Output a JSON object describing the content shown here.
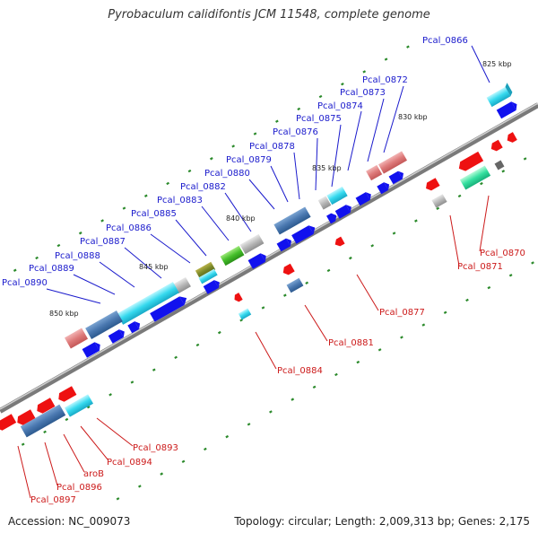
{
  "title": "Pyrobaculum calidifontis JCM 11548, complete genome",
  "footer": {
    "accession": "Accession: NC_009073",
    "summary": "Topology: circular; Length: 2,009,313 bp; Genes: 2,175"
  },
  "colors": {
    "forward_label": "#1a1acc",
    "reverse_label": "#cc1a1a",
    "backbone": "#7a7a7a",
    "tick": "#2b8a2b"
  },
  "kbp_labels": [
    "825 kbp",
    "830 kbp",
    "835 kbp",
    "840 kbp",
    "845 kbp",
    "850 kbp"
  ],
  "forward_genes": [
    "Pcal_0866",
    "Pcal_0872",
    "Pcal_0873",
    "Pcal_0874",
    "Pcal_0875",
    "Pcal_0876",
    "Pcal_0878",
    "Pcal_0879",
    "Pcal_0880",
    "Pcal_0882",
    "Pcal_0883",
    "Pcal_0885",
    "Pcal_0886",
    "Pcal_0887",
    "Pcal_0888",
    "Pcal_0889",
    "Pcal_0890"
  ],
  "reverse_genes": [
    "Pcal_0870",
    "Pcal_0871",
    "Pcal_0877",
    "Pcal_0881",
    "Pcal_0884",
    "Pcal_0893",
    "Pcal_0894",
    "aroB",
    "Pcal_0896",
    "Pcal_0897"
  ]
}
